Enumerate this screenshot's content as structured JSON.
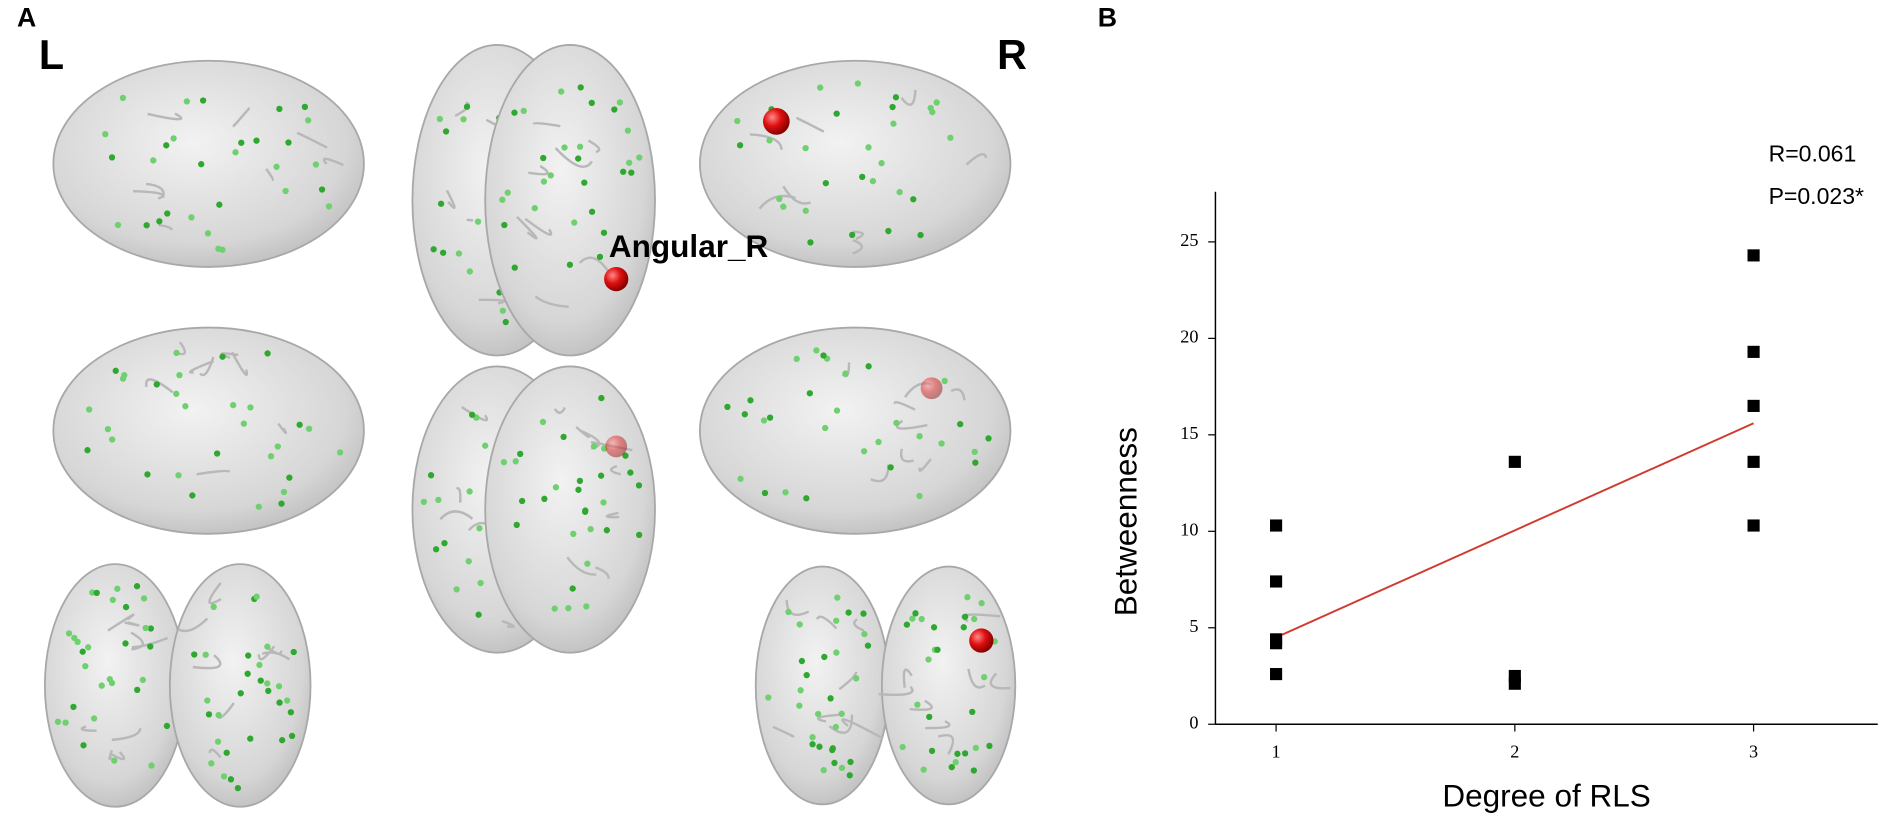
{
  "panel_a": {
    "label": "A",
    "left_label": "L",
    "right_label": "R",
    "annotation": "Angular_R"
  },
  "chart_data": {
    "type": "scatter",
    "panel_label": "B",
    "xlabel": "Degree of RLS",
    "ylabel": "Betweenness",
    "x": [
      1,
      1,
      1,
      1,
      1,
      2,
      2,
      2,
      3,
      3,
      3,
      3,
      3
    ],
    "values": [
      10.3,
      7.4,
      4.4,
      4.2,
      2.6,
      13.6,
      2.5,
      2.1,
      24.3,
      19.3,
      16.5,
      13.6,
      10.3
    ],
    "color": "#000000",
    "fit": {
      "type": "line",
      "x": [
        1,
        3
      ],
      "values": [
        4.5,
        15.6
      ],
      "color": "#d03a2f"
    },
    "annotations": [
      "R=0.061",
      "P=0.023*"
    ],
    "xlim": [
      0.746,
      3.52
    ],
    "ylim": [
      0,
      27.6
    ],
    "xticks": [
      1,
      2,
      3
    ],
    "yticks": [
      0,
      5,
      10,
      15,
      20,
      25
    ]
  }
}
